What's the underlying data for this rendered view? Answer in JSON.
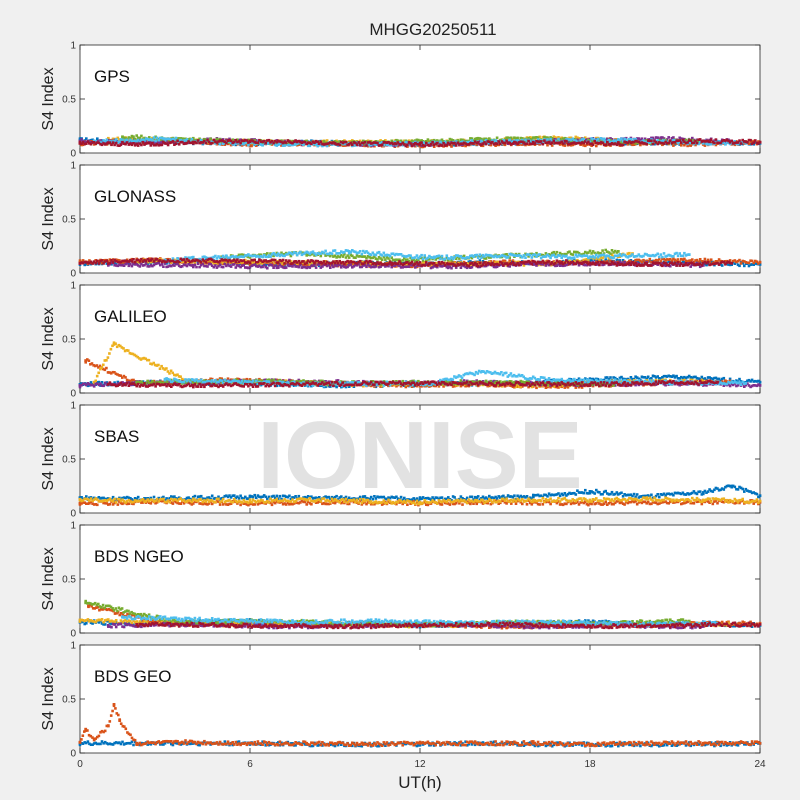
{
  "chart_data": {
    "type": "scatter",
    "title": "MHGG20250511",
    "xlabel": "UT(h)",
    "ylabel": "S4 Index",
    "xlim": [
      0,
      24
    ],
    "ylim": [
      0,
      1
    ],
    "xticks": [
      "0",
      "6",
      "12",
      "18",
      "24"
    ],
    "yticks": [
      "0",
      "0.5",
      "1"
    ],
    "grid": false,
    "watermark": "IONISE",
    "colors": [
      "#0072BD",
      "#D95319",
      "#EDB120",
      "#7E2F8E",
      "#77AC30",
      "#4DBEEE",
      "#A2142F"
    ],
    "panels": [
      {
        "name": "GPS",
        "series": [
          {
            "color": "#0072BD",
            "x": [
              0,
              2,
              4,
              6,
              8,
              10,
              12,
              14,
              16,
              18,
              20,
              22,
              24
            ],
            "y": [
              0.12,
              0.11,
              0.1,
              0.09,
              0.1,
              0.09,
              0.08,
              0.09,
              0.1,
              0.11,
              0.09,
              0.1,
              0.09
            ]
          },
          {
            "color": "#D95319",
            "x": [
              0,
              2,
              4,
              6,
              8,
              10,
              12,
              14,
              16,
              18,
              20,
              22,
              24
            ],
            "y": [
              0.09,
              0.1,
              0.11,
              0.08,
              0.09,
              0.08,
              0.07,
              0.08,
              0.09,
              0.08,
              0.09,
              0.08,
              0.1
            ]
          },
          {
            "color": "#EDB120",
            "x": [
              1,
              3,
              5,
              7,
              13,
              15,
              17,
              19,
              21
            ],
            "y": [
              0.13,
              0.12,
              0.11,
              0.1,
              0.1,
              0.12,
              0.14,
              0.11,
              0.1
            ]
          },
          {
            "color": "#7E2F8E",
            "x": [
              0,
              2.5,
              5,
              8,
              11,
              15,
              18,
              20.5,
              23
            ],
            "y": [
              0.11,
              0.1,
              0.12,
              0.09,
              0.08,
              0.1,
              0.12,
              0.13,
              0.11
            ]
          },
          {
            "color": "#77AC30",
            "x": [
              1.5,
              4,
              6.5,
              9,
              14,
              16.5,
              19,
              22
            ],
            "y": [
              0.15,
              0.12,
              0.1,
              0.09,
              0.12,
              0.13,
              0.1,
              0.11
            ]
          },
          {
            "color": "#4DBEEE",
            "x": [
              0.5,
              3,
              5.5,
              8.5,
              12.5,
              15.5,
              18.5,
              21.5,
              23.5
            ],
            "y": [
              0.1,
              0.13,
              0.09,
              0.08,
              0.09,
              0.11,
              0.12,
              0.1,
              0.09
            ]
          },
          {
            "color": "#A2142F",
            "x": [
              0,
              2,
              4,
              6,
              9,
              12,
              16,
              19,
              22,
              24
            ],
            "y": [
              0.09,
              0.08,
              0.1,
              0.11,
              0.09,
              0.08,
              0.1,
              0.09,
              0.11,
              0.1
            ]
          }
        ]
      },
      {
        "name": "GLONASS",
        "series": [
          {
            "color": "#0072BD",
            "x": [
              0,
              2,
              4,
              6,
              8,
              10,
              12,
              14,
              16,
              18,
              20,
              22,
              24
            ],
            "y": [
              0.09,
              0.1,
              0.11,
              0.09,
              0.08,
              0.09,
              0.08,
              0.1,
              0.09,
              0.11,
              0.1,
              0.09,
              0.08
            ]
          },
          {
            "color": "#D95319",
            "x": [
              0,
              3,
              6,
              9,
              12,
              15,
              18,
              21,
              24
            ],
            "y": [
              0.1,
              0.12,
              0.09,
              0.08,
              0.07,
              0.1,
              0.09,
              0.12,
              0.1
            ]
          },
          {
            "color": "#EDB120",
            "x": [
              2,
              7,
              11,
              17,
              19.5
            ],
            "y": [
              0.11,
              0.1,
              0.08,
              0.09,
              0.18
            ]
          },
          {
            "color": "#7E2F8E",
            "x": [
              1,
              4,
              7,
              10,
              13,
              16,
              19,
              22
            ],
            "y": [
              0.08,
              0.07,
              0.06,
              0.07,
              0.06,
              0.08,
              0.09,
              0.07
            ]
          },
          {
            "color": "#77AC30",
            "x": [
              5,
              8,
              11.5,
              19
            ],
            "y": [
              0.15,
              0.18,
              0.12,
              0.2
            ]
          },
          {
            "color": "#4DBEEE",
            "x": [
              3,
              9.5,
              12.5,
              14.5,
              18,
              21.5
            ],
            "y": [
              0.12,
              0.2,
              0.14,
              0.16,
              0.15,
              0.17
            ]
          },
          {
            "color": "#A2142F",
            "x": [
              0,
              2.5,
              5.5,
              8.5,
              11,
              14,
              17,
              20,
              23
            ],
            "y": [
              0.09,
              0.12,
              0.11,
              0.1,
              0.09,
              0.08,
              0.1,
              0.08,
              0.09
            ]
          }
        ]
      },
      {
        "name": "GALILEO",
        "series": [
          {
            "color": "#0072BD",
            "x": [
              0,
              3,
              6,
              9,
              12,
              15,
              18,
              21,
              24
            ],
            "y": [
              0.08,
              0.1,
              0.09,
              0.07,
              0.08,
              0.09,
              0.12,
              0.15,
              0.1
            ]
          },
          {
            "color": "#D95319",
            "x": [
              0.2,
              2,
              5,
              8,
              11,
              14,
              17,
              20,
              23
            ],
            "y": [
              0.3,
              0.09,
              0.12,
              0.1,
              0.07,
              0.08,
              0.06,
              0.09,
              0.1
            ]
          },
          {
            "color": "#EDB120",
            "x": [
              0.5,
              1.2,
              4,
              7,
              10,
              13,
              16,
              19,
              22
            ],
            "y": [
              0.1,
              0.45,
              0.09,
              0.1,
              0.08,
              0.09,
              0.07,
              0.1,
              0.11
            ]
          },
          {
            "color": "#7E2F8E",
            "x": [
              0,
              1.5,
              4.5,
              7.5,
              10.5,
              13.5,
              17.5,
              21.5,
              24
            ],
            "y": [
              0.07,
              0.09,
              0.1,
              0.11,
              0.09,
              0.1,
              0.08,
              0.09,
              0.07
            ]
          },
          {
            "color": "#77AC30",
            "x": [
              2,
              6,
              9.5,
              14,
              19
            ],
            "y": [
              0.1,
              0.11,
              0.09,
              0.1,
              0.08
            ]
          },
          {
            "color": "#4DBEEE",
            "x": [
              3,
              5.5,
              8.5,
              12.5,
              14.2,
              16.5,
              20,
              23.5
            ],
            "y": [
              0.12,
              0.1,
              0.08,
              0.09,
              0.2,
              0.12,
              0.1,
              0.09
            ]
          },
          {
            "color": "#A2142F",
            "x": [
              1,
              4,
              11.5,
              18,
              22.5
            ],
            "y": [
              0.08,
              0.07,
              0.09,
              0.08,
              0.1
            ]
          }
        ]
      },
      {
        "name": "SBAS",
        "series": [
          {
            "color": "#0072BD",
            "x": [
              0,
              2,
              4,
              6,
              8,
              10,
              12,
              14,
              16,
              18,
              20,
              22,
              23,
              24
            ],
            "y": [
              0.14,
              0.13,
              0.14,
              0.15,
              0.14,
              0.14,
              0.13,
              0.14,
              0.15,
              0.2,
              0.15,
              0.19,
              0.25,
              0.16
            ]
          },
          {
            "color": "#D95319",
            "x": [
              0,
              3,
              6,
              9,
              12,
              15,
              18,
              21,
              24
            ],
            "y": [
              0.09,
              0.1,
              0.09,
              0.1,
              0.09,
              0.1,
              0.09,
              0.1,
              0.1
            ]
          },
          {
            "color": "#EDB120",
            "x": [
              0,
              2,
              4,
              6,
              8,
              10,
              12,
              14,
              16,
              18,
              20,
              22,
              24
            ],
            "y": [
              0.12,
              0.11,
              0.12,
              0.11,
              0.12,
              0.11,
              0.1,
              0.11,
              0.12,
              0.12,
              0.13,
              0.12,
              0.11
            ]
          }
        ]
      },
      {
        "name": "BDS NGEO",
        "series": [
          {
            "color": "#0072BD",
            "x": [
              0,
              2,
              4,
              6,
              8,
              10,
              12,
              14,
              16,
              18,
              20,
              22,
              24
            ],
            "y": [
              0.1,
              0.09,
              0.1,
              0.11,
              0.08,
              0.09,
              0.07,
              0.08,
              0.09,
              0.1,
              0.08,
              0.09,
              0.07
            ]
          },
          {
            "color": "#D95319",
            "x": [
              0.3,
              3,
              6,
              9,
              12,
              15,
              18,
              21,
              24
            ],
            "y": [
              0.25,
              0.08,
              0.09,
              0.07,
              0.08,
              0.06,
              0.07,
              0.08,
              0.09
            ]
          },
          {
            "color": "#EDB120",
            "x": [
              0,
              2,
              5,
              8,
              11,
              14,
              17,
              20,
              23
            ],
            "y": [
              0.12,
              0.1,
              0.08,
              0.09,
              0.07,
              0.08,
              0.09,
              0.07,
              0.08
            ]
          },
          {
            "color": "#7E2F8E",
            "x": [
              1,
              4,
              7,
              10,
              13,
              16,
              19,
              22
            ],
            "y": [
              0.07,
              0.08,
              0.06,
              0.07,
              0.08,
              0.06,
              0.07,
              0.06
            ]
          },
          {
            "color": "#77AC30",
            "x": [
              0.2,
              3.5,
              6.5,
              9.5,
              12.5,
              15.5,
              18.5,
              21.5
            ],
            "y": [
              0.28,
              0.1,
              0.11,
              0.09,
              0.08,
              0.1,
              0.09,
              0.11
            ]
          },
          {
            "color": "#4DBEEE",
            "x": [
              1.5,
              4.5,
              7.5,
              10.5,
              13.5,
              16.5,
              19.5,
              22.5
            ],
            "y": [
              0.15,
              0.12,
              0.1,
              0.11,
              0.09,
              0.1,
              0.08,
              0.09
            ]
          },
          {
            "color": "#A2142F",
            "x": [
              2,
              5.5,
              9,
              12,
              15,
              18,
              21,
              24
            ],
            "y": [
              0.08,
              0.07,
              0.06,
              0.07,
              0.08,
              0.06,
              0.07,
              0.08
            ]
          }
        ]
      },
      {
        "name": "BDS GEO",
        "series": [
          {
            "color": "#0072BD",
            "x": [
              0,
              2,
              4,
              6,
              8,
              10,
              12,
              14,
              16,
              18,
              20,
              22,
              24
            ],
            "y": [
              0.09,
              0.09,
              0.09,
              0.09,
              0.08,
              0.08,
              0.08,
              0.09,
              0.08,
              0.08,
              0.08,
              0.08,
              0.09
            ]
          },
          {
            "color": "#D95319",
            "x": [
              0,
              0.2,
              0.5,
              1,
              1.2,
              1.4,
              2,
              4,
              6,
              8,
              10,
              12,
              14,
              16,
              18,
              20,
              22,
              24
            ],
            "y": [
              0.1,
              0.22,
              0.12,
              0.25,
              0.45,
              0.3,
              0.09,
              0.1,
              0.09,
              0.09,
              0.08,
              0.09,
              0.09,
              0.09,
              0.08,
              0.09,
              0.09,
              0.09
            ]
          }
        ]
      }
    ]
  }
}
